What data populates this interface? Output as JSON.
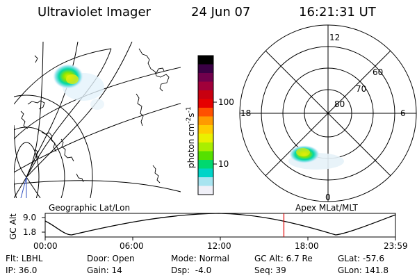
{
  "header": {
    "instrument": "Ultraviolet Imager",
    "date": "24 Jun 07",
    "time": "16:21:31 UT"
  },
  "colorbar": {
    "label_main": "photon cm",
    "label_exp": "-2",
    "label_mid": "s",
    "label_exp2": "-1",
    "ticks": [
      "100",
      "10"
    ],
    "colors": [
      "#000000",
      "#3a0044",
      "#70004c",
      "#a0003a",
      "#c80010",
      "#e60000",
      "#ff5000",
      "#ff9a00",
      "#ffcc00",
      "#eaf000",
      "#aaee00",
      "#55e000",
      "#00d870",
      "#00d4c8",
      "#a8e4f0",
      "#f0f0f8"
    ]
  },
  "polar": {
    "mlt_labels": {
      "top": "12",
      "left": "18",
      "right": "6",
      "bottom": "0"
    },
    "lat_labels": [
      "60",
      "70",
      "80"
    ]
  },
  "timeline": {
    "left_title": "Geographic Lat/Lon",
    "right_title": "Apex MLat/MLT",
    "yaxis_label": "GC Alt",
    "yticks": [
      "9.0",
      "1.8"
    ],
    "xticks": [
      "00:00",
      "06:00",
      "12:00",
      "18:00",
      "23:59"
    ],
    "current_time_fraction": 0.6815
  },
  "info": {
    "row1": [
      {
        "label": "Flt:",
        "value": "LBHL"
      },
      {
        "label": "Door:",
        "value": "Open"
      },
      {
        "label": "Mode:",
        "value": "Normal"
      },
      {
        "label": "GC Alt:",
        "value": "6.7 Re"
      },
      {
        "label": "GLat:",
        "value": "-57.6"
      }
    ],
    "row2": [
      {
        "label": "IP:",
        "value": "36.0"
      },
      {
        "label": "Gain:",
        "value": "14"
      },
      {
        "label": "Dsp:",
        "value": "-4.0"
      },
      {
        "label": "Seq:",
        "value": "39"
      },
      {
        "label": "GLon:",
        "value": "141.8"
      }
    ]
  }
}
